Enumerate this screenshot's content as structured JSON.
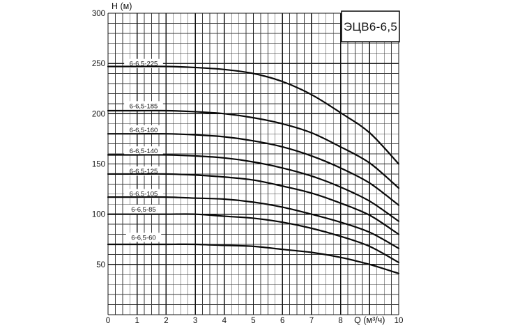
{
  "title_box": {
    "label": "ЭЦВ6-6,5"
  },
  "axes": {
    "y_label": "H (м)",
    "x_label": "Q (м³/ч)"
  },
  "chart_data": {
    "type": "line",
    "title": "ЭЦВ6-6,5",
    "xlabel": "Q (м³/ч)",
    "ylabel": "H (м)",
    "xlim": [
      0,
      10
    ],
    "ylim": [
      0,
      300
    ],
    "x_major_step": 1,
    "x_minor_step": 0.25,
    "y_major_step": 50,
    "y_minor_step": 10,
    "grid": "on",
    "legend_position": "inline-labels-left",
    "x_tick_values": [
      0,
      1,
      2,
      3,
      4,
      5,
      6,
      7,
      8,
      10
    ],
    "x_axis_label_at": 9,
    "y_tick_values": [
      50,
      100,
      150,
      200,
      250,
      300
    ],
    "x": [
      0,
      1,
      2,
      3,
      4,
      5,
      6,
      7,
      8,
      9,
      10
    ],
    "series": [
      {
        "name": "6-6,5-225",
        "values": [
          247,
          247,
          247,
          246,
          244,
          240,
          232,
          219,
          201,
          181,
          150
        ],
        "label_h": 250
      },
      {
        "name": "6-6,5-185",
        "values": [
          203,
          203,
          203,
          202,
          200,
          196,
          190,
          181,
          167,
          151,
          126
        ],
        "label_h": 208
      },
      {
        "name": "6-6,5-160",
        "values": [
          180,
          180,
          180,
          179,
          177,
          173,
          167,
          158,
          146,
          131,
          109
        ],
        "label_h": 184
      },
      {
        "name": "6-6,5-140",
        "values": [
          159,
          159,
          159,
          158,
          156,
          152,
          146,
          138,
          127,
          113,
          93
        ],
        "label_h": 163
      },
      {
        "name": "6-6,5-125",
        "values": [
          140,
          140,
          140,
          139,
          137,
          134,
          128,
          121,
          111,
          99,
          80
        ],
        "label_h": 143
      },
      {
        "name": "6-6,5-105",
        "values": [
          117,
          117,
          117,
          116,
          115,
          112,
          107,
          100,
          92,
          82,
          66
        ],
        "label_h": 120.5
      },
      {
        "name": "6-6,5-85",
        "values": [
          100,
          100,
          100,
          100,
          98,
          96,
          92,
          86,
          78,
          68,
          52
        ],
        "label_h": 105
      },
      {
        "name": "6-6,5-60",
        "values": [
          70,
          70,
          70,
          70,
          69,
          68,
          65,
          62,
          57,
          50,
          41
        ],
        "label_h": 77
      }
    ],
    "colors": {
      "curve": "#0a0a0a",
      "grid_minor": "#3a3a3a",
      "grid_major": "#151515",
      "background": "#ffffff"
    }
  }
}
